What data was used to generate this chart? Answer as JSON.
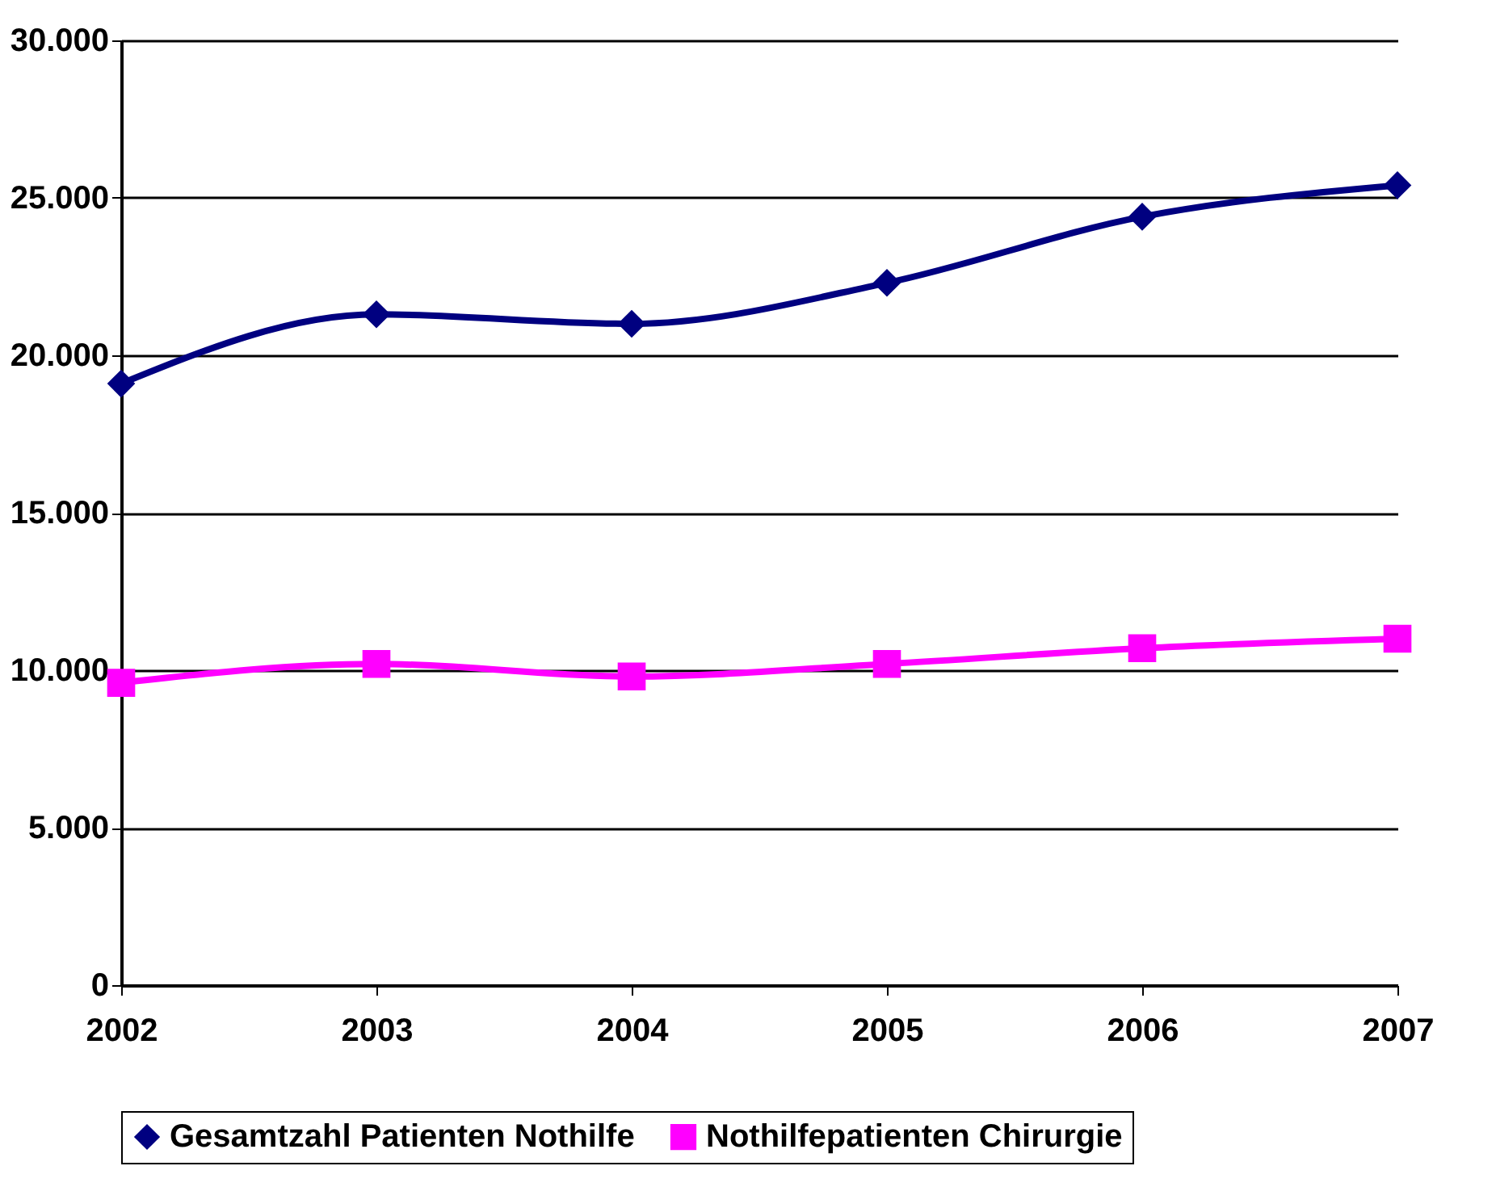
{
  "chart_data": {
    "type": "line",
    "categories": [
      "2002",
      "2003",
      "2004",
      "2005",
      "2006",
      "2007"
    ],
    "series": [
      {
        "name": "Gesamtzahl Patienten Nothilfe",
        "color": "#000080",
        "marker": "diamond",
        "values": [
          19100,
          21300,
          21000,
          22300,
          24400,
          25400
        ]
      },
      {
        "name": "Nothilfepatienten Chirurgie",
        "color": "#ff00ff",
        "marker": "square",
        "values": [
          9600,
          10200,
          9800,
          10200,
          10700,
          11000
        ]
      }
    ],
    "ylim": [
      0,
      30000
    ],
    "yticks": [
      {
        "value": 0,
        "label": "0"
      },
      {
        "value": 5000,
        "label": "5.000"
      },
      {
        "value": 10000,
        "label": "10.000"
      },
      {
        "value": 15000,
        "label": "15.000"
      },
      {
        "value": 20000,
        "label": "20.000"
      },
      {
        "value": 25000,
        "label": "25.000"
      },
      {
        "value": 30000,
        "label": "30.000"
      }
    ],
    "grid": "y",
    "legend": "bottom",
    "line_style": "solid"
  }
}
